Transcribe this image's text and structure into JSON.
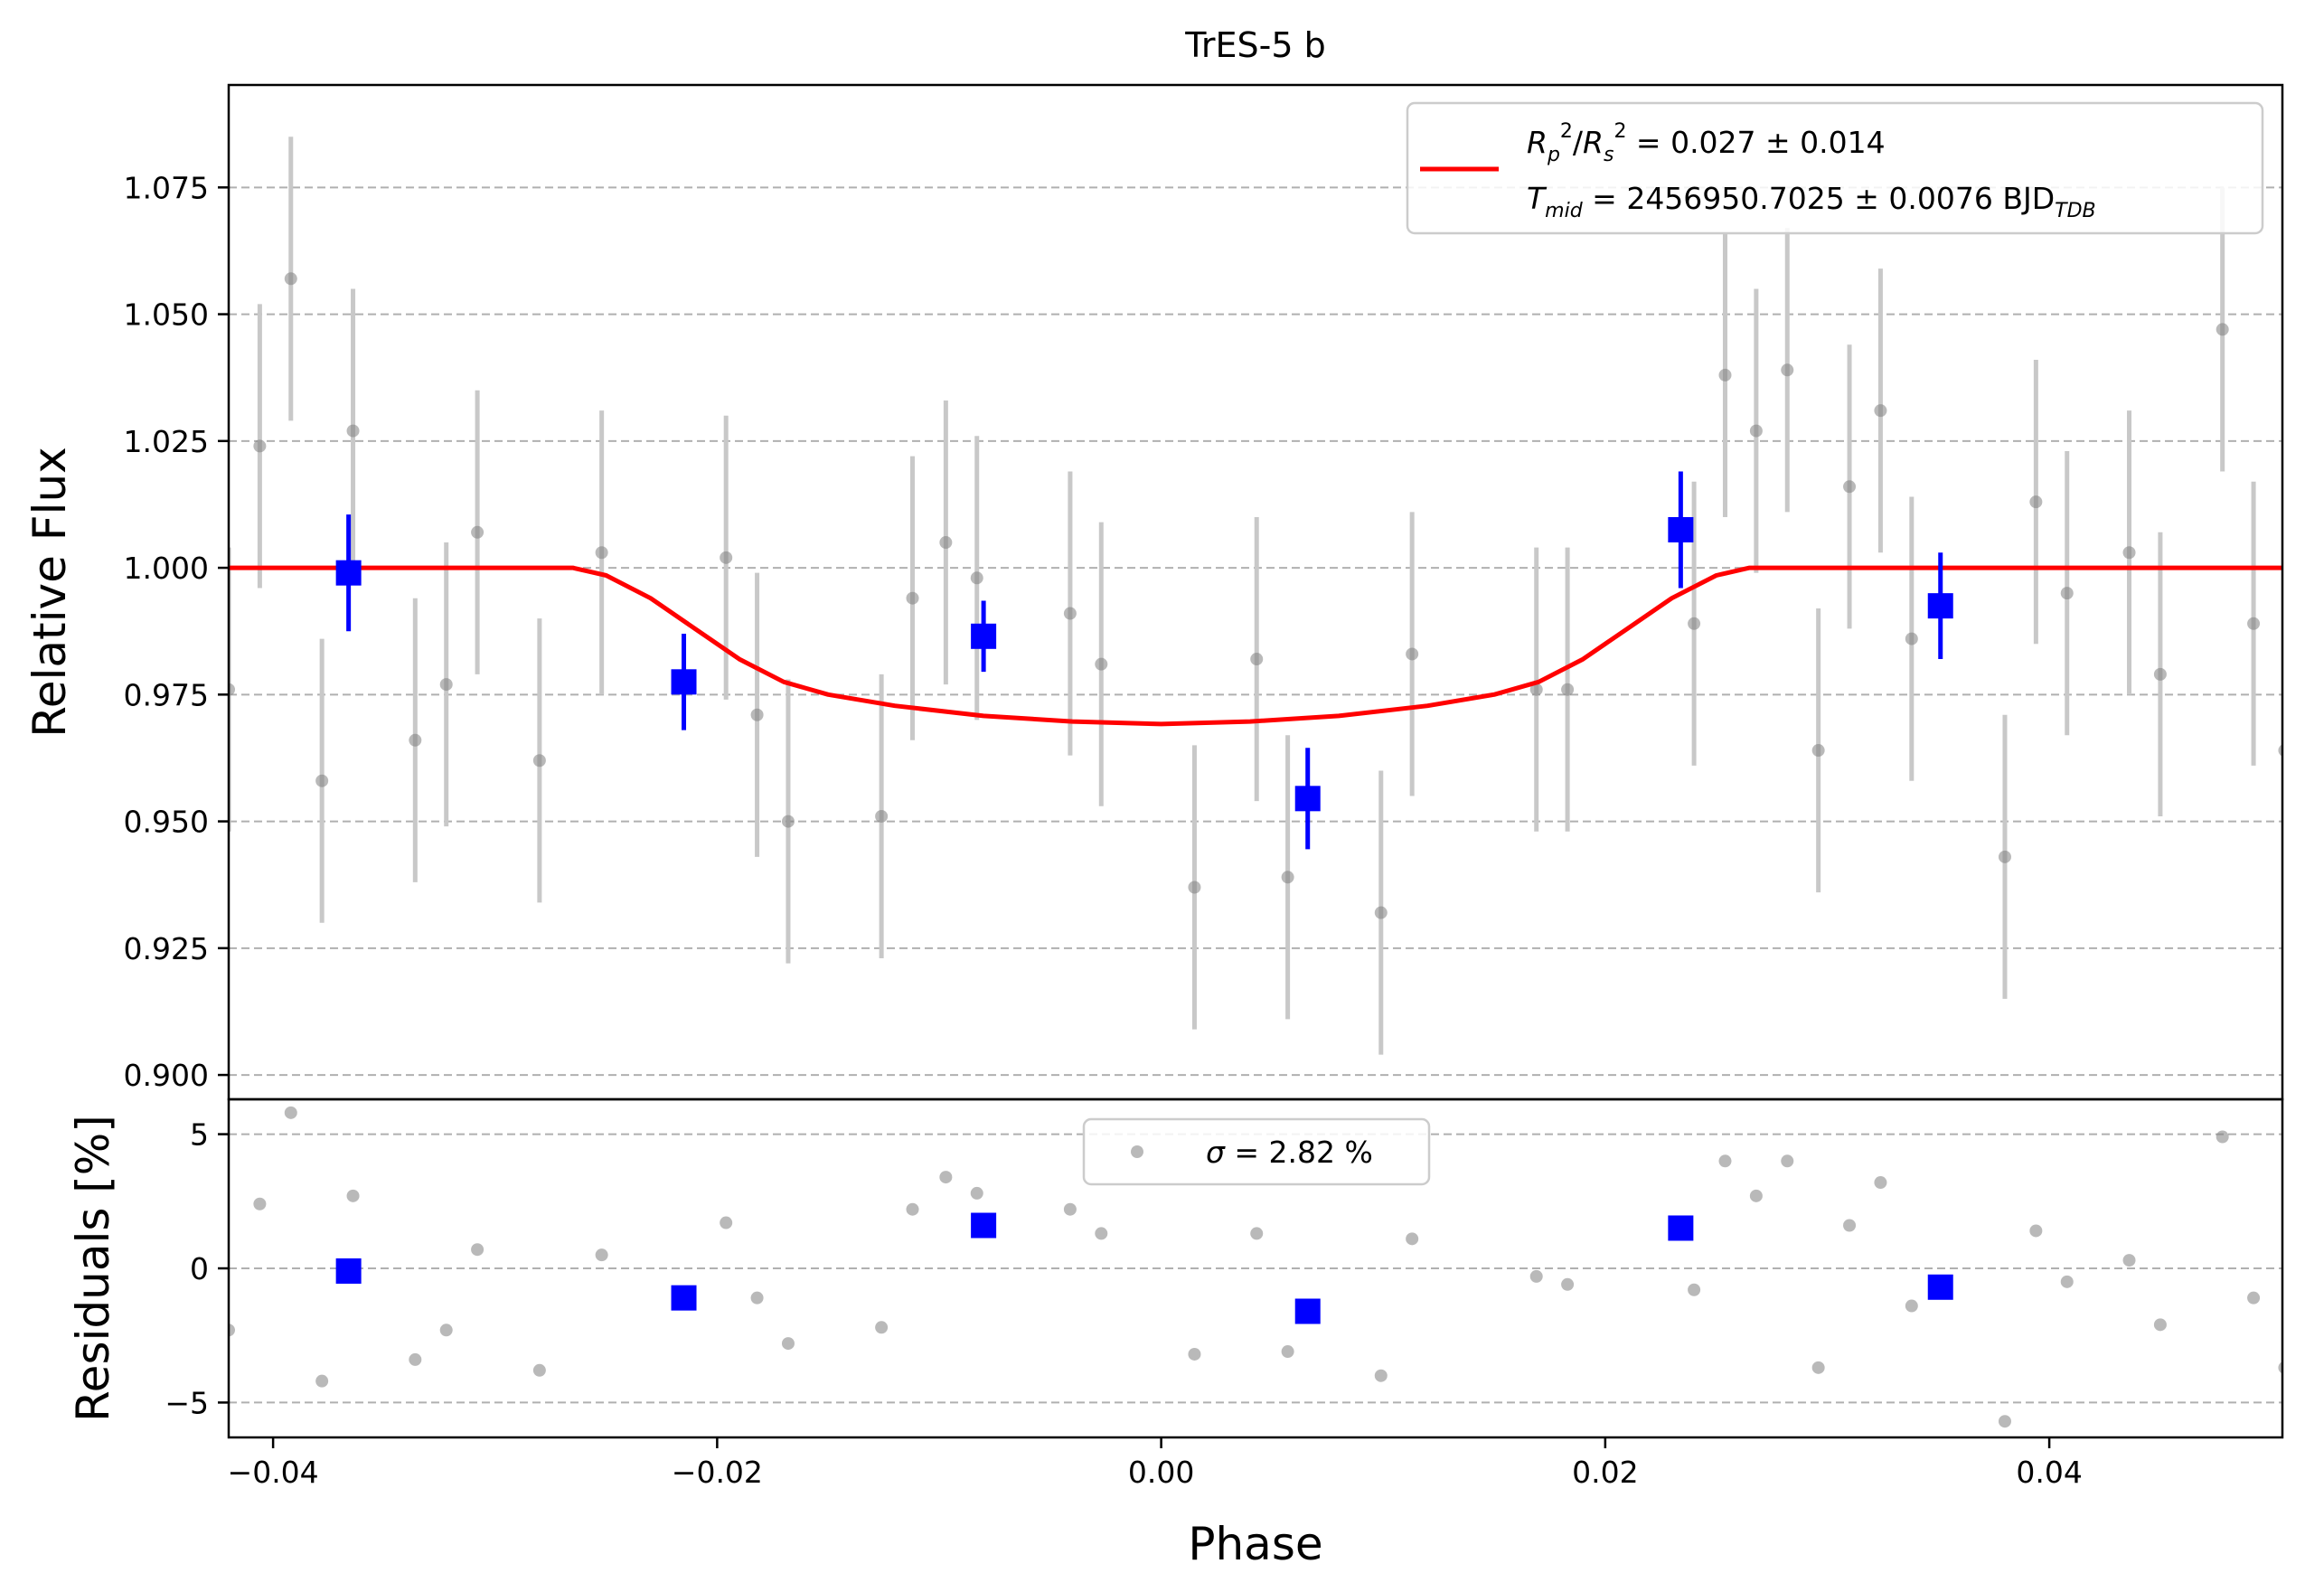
{
  "chart_data": {
    "type": "scatter",
    "title": "TrES-5 b",
    "xlabel": "Phase",
    "top_panel": {
      "ylabel": "Relative Flux",
      "xlim": [
        -0.042,
        0.0505
      ],
      "ylim": [
        0.8952,
        1.0952
      ],
      "yticks": [
        0.9,
        0.925,
        0.95,
        0.975,
        1.0,
        1.025,
        1.05,
        1.075
      ],
      "ytick_labels": [
        "0.900",
        "0.925",
        "0.950",
        "0.975",
        "1.000",
        "1.025",
        "1.050",
        "1.075"
      ],
      "grid": "horizontal dashed",
      "legend": {
        "placement": "upper-right",
        "line1": "R_p^2/R_s^2 = 0.027 ± 0.014",
        "line2": "T_mid = 2456950.7025 ± 0.0076 BJD_TDB"
      },
      "raw_points": [
        {
          "x": -0.042,
          "y": 0.976,
          "err": 0.028
        },
        {
          "x": -0.0406,
          "y": 1.024,
          "err": 0.028
        },
        {
          "x": -0.0392,
          "y": 1.057,
          "err": 0.028
        },
        {
          "x": -0.0378,
          "y": 0.958,
          "err": 0.028
        },
        {
          "x": -0.0364,
          "y": 1.027,
          "err": 0.028
        },
        {
          "x": -0.0336,
          "y": 0.966,
          "err": 0.028
        },
        {
          "x": -0.0322,
          "y": 0.977,
          "err": 0.028
        },
        {
          "x": -0.0308,
          "y": 1.007,
          "err": 0.028
        },
        {
          "x": -0.028,
          "y": 0.962,
          "err": 0.028
        },
        {
          "x": -0.0252,
          "y": 1.003,
          "err": 0.028
        },
        {
          "x": -0.0196,
          "y": 1.002,
          "err": 0.028
        },
        {
          "x": -0.0182,
          "y": 0.971,
          "err": 0.028
        },
        {
          "x": -0.0168,
          "y": 0.95,
          "err": 0.028
        },
        {
          "x": -0.0126,
          "y": 0.951,
          "err": 0.028
        },
        {
          "x": -0.0112,
          "y": 0.994,
          "err": 0.028
        },
        {
          "x": -0.0097,
          "y": 1.005,
          "err": 0.028
        },
        {
          "x": -0.0083,
          "y": 0.998,
          "err": 0.028
        },
        {
          "x": -0.0041,
          "y": 0.991,
          "err": 0.028
        },
        {
          "x": -0.0027,
          "y": 0.981,
          "err": 0.028
        },
        {
          "x": 0.0015,
          "y": 0.937,
          "err": 0.028
        },
        {
          "x": 0.0043,
          "y": 0.982,
          "err": 0.028
        },
        {
          "x": 0.0057,
          "y": 0.939,
          "err": 0.028
        },
        {
          "x": 0.0099,
          "y": 0.932,
          "err": 0.028
        },
        {
          "x": 0.0113,
          "y": 0.983,
          "err": 0.028
        },
        {
          "x": 0.0169,
          "y": 0.976,
          "err": 0.028
        },
        {
          "x": 0.0183,
          "y": 0.976,
          "err": 0.028
        },
        {
          "x": 0.024,
          "y": 0.989,
          "err": 0.028
        },
        {
          "x": 0.0254,
          "y": 1.038,
          "err": 0.028
        },
        {
          "x": 0.0268,
          "y": 1.027,
          "err": 0.028
        },
        {
          "x": 0.0282,
          "y": 1.039,
          "err": 0.028
        },
        {
          "x": 0.0296,
          "y": 0.964,
          "err": 0.028
        },
        {
          "x": 0.031,
          "y": 1.016,
          "err": 0.028
        },
        {
          "x": 0.0324,
          "y": 1.031,
          "err": 0.028
        },
        {
          "x": 0.0338,
          "y": 0.986,
          "err": 0.028
        },
        {
          "x": 0.038,
          "y": 0.943,
          "err": 0.028
        },
        {
          "x": 0.0394,
          "y": 1.013,
          "err": 0.028
        },
        {
          "x": 0.0408,
          "y": 0.995,
          "err": 0.028
        },
        {
          "x": 0.0436,
          "y": 1.003,
          "err": 0.028
        },
        {
          "x": 0.045,
          "y": 0.979,
          "err": 0.028
        },
        {
          "x": 0.0478,
          "y": 1.047,
          "err": 0.028
        },
        {
          "x": 0.0492,
          "y": 0.989,
          "err": 0.028
        },
        {
          "x": 0.0506,
          "y": 0.964,
          "err": 0.028
        }
      ],
      "binned_points": [
        {
          "x": -0.0366,
          "y": 0.999,
          "err": 0.0115
        },
        {
          "x": -0.0215,
          "y": 0.9775,
          "err": 0.0095
        },
        {
          "x": -0.008,
          "y": 0.9865,
          "err": 0.007
        },
        {
          "x": 0.0066,
          "y": 0.9545,
          "err": 0.01
        },
        {
          "x": 0.0234,
          "y": 1.0075,
          "err": 0.0115
        },
        {
          "x": 0.0351,
          "y": 0.9925,
          "err": 0.0105
        }
      ],
      "model_curve": {
        "x": [
          -0.042,
          -0.0265,
          -0.025,
          -0.023,
          -0.021,
          -0.019,
          -0.017,
          -0.015,
          -0.012,
          -0.008,
          -0.004,
          0.0,
          0.004,
          0.008,
          0.012,
          0.015,
          0.017,
          0.019,
          0.021,
          0.023,
          0.025,
          0.0265,
          0.0505
        ],
        "y": [
          1.0,
          1.0,
          0.9985,
          0.994,
          0.988,
          0.982,
          0.9775,
          0.975,
          0.9728,
          0.9708,
          0.9697,
          0.9692,
          0.9697,
          0.9708,
          0.9728,
          0.975,
          0.9775,
          0.982,
          0.988,
          0.994,
          0.9985,
          1.0,
          1.0
        ]
      }
    },
    "bottom_panel": {
      "ylabel": "Residuals [%]",
      "xlim": [
        -0.042,
        0.0505
      ],
      "ylim": [
        -6.3,
        6.3
      ],
      "yticks": [
        -5,
        0,
        5
      ],
      "ytick_labels": [
        "−5",
        "0",
        "5"
      ],
      "grid": "horizontal dashed",
      "legend": {
        "placement": "upper-center",
        "text": "σ = 2.82 %"
      },
      "raw_points": [
        {
          "x": -0.042,
          "y": -2.3
        },
        {
          "x": -0.0406,
          "y": 2.4
        },
        {
          "x": -0.0392,
          "y": 5.8
        },
        {
          "x": -0.0378,
          "y": -4.2
        },
        {
          "x": -0.0364,
          "y": 2.7
        },
        {
          "x": -0.0336,
          "y": -3.4
        },
        {
          "x": -0.0322,
          "y": -2.3
        },
        {
          "x": -0.0308,
          "y": 0.7
        },
        {
          "x": -0.028,
          "y": -3.8
        },
        {
          "x": -0.0252,
          "y": 0.5
        },
        {
          "x": -0.0196,
          "y": 1.7
        },
        {
          "x": -0.0182,
          "y": -1.1
        },
        {
          "x": -0.0168,
          "y": -2.8
        },
        {
          "x": -0.0126,
          "y": -2.2
        },
        {
          "x": -0.0112,
          "y": 2.2
        },
        {
          "x": -0.0097,
          "y": 3.4
        },
        {
          "x": -0.0083,
          "y": 2.8
        },
        {
          "x": -0.0041,
          "y": 2.2
        },
        {
          "x": -0.0027,
          "y": 1.3
        },
        {
          "x": 0.0015,
          "y": -3.2
        },
        {
          "x": 0.0043,
          "y": 1.3
        },
        {
          "x": 0.0057,
          "y": -3.1
        },
        {
          "x": 0.0099,
          "y": -4.0
        },
        {
          "x": 0.0113,
          "y": 1.1
        },
        {
          "x": 0.0169,
          "y": -0.3
        },
        {
          "x": 0.0183,
          "y": -0.6
        },
        {
          "x": 0.024,
          "y": -0.8
        },
        {
          "x": 0.0254,
          "y": 4.0
        },
        {
          "x": 0.0268,
          "y": 2.7
        },
        {
          "x": 0.0282,
          "y": 4.0
        },
        {
          "x": 0.0296,
          "y": -3.7
        },
        {
          "x": 0.031,
          "y": 1.6
        },
        {
          "x": 0.0324,
          "y": 3.2
        },
        {
          "x": 0.0338,
          "y": -1.4
        },
        {
          "x": 0.038,
          "y": -5.7
        },
        {
          "x": 0.0394,
          "y": 1.4
        },
        {
          "x": 0.0408,
          "y": -0.5
        },
        {
          "x": 0.0436,
          "y": 0.3
        },
        {
          "x": 0.045,
          "y": -2.1
        },
        {
          "x": 0.0478,
          "y": 4.9
        },
        {
          "x": 0.0492,
          "y": -1.1
        },
        {
          "x": 0.0506,
          "y": -3.7
        }
      ],
      "binned_points": [
        {
          "x": -0.0366,
          "y": -0.1
        },
        {
          "x": -0.0215,
          "y": -1.1
        },
        {
          "x": -0.008,
          "y": 1.6
        },
        {
          "x": 0.0066,
          "y": -1.6
        },
        {
          "x": 0.0234,
          "y": 1.5
        },
        {
          "x": 0.0351,
          "y": -0.7
        }
      ]
    },
    "xticks": [
      -0.04,
      -0.02,
      0.0,
      0.02,
      0.04
    ],
    "xtick_labels": [
      "−0.04",
      "−0.02",
      "0.00",
      "0.02",
      "0.04"
    ],
    "colors": {
      "raw_points": "#808080",
      "raw_errorbars": "#c8c8c8",
      "binned": "#0000ff",
      "model": "#ff0000",
      "grid": "#b0b0b0"
    }
  }
}
